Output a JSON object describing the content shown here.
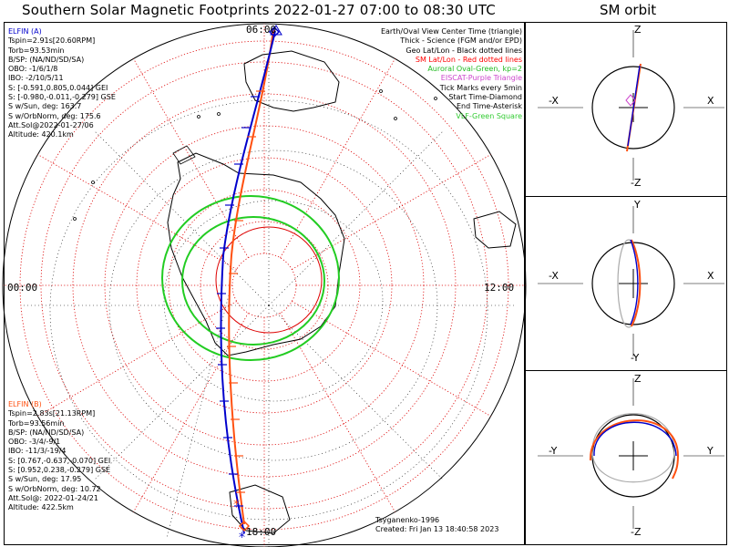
{
  "title": "Southern Solar Magnetic Footprints 2022-01-27 07:00 to 08:30 UTC",
  "sm_title": "SM orbit",
  "colors": {
    "elfin_a": "#0000cc",
    "elfin_b": "#ff5010",
    "geo_grid": "#000000",
    "sm_grid": "#dd0000",
    "oval": "#22cc22",
    "eiscat": "#cc44cc",
    "vlf": "#33cc33"
  },
  "map": {
    "label_top": "06:00",
    "label_left": "00:00",
    "label_right": "12:00",
    "label_bottom": "18:00"
  },
  "elfin_a": {
    "header": "ELFIN (A)",
    "lines": [
      "Tspin=2.91s[20.60RPM]",
      "Torb=93.53min",
      "B/SP: (NA/ND/SD/SA)",
      "OBO: -1/6/1/8",
      "IBO: -2/10/5/11",
      "S: [-0.591,0.805,0.044] GEI",
      "S: [-0.980,-0.011,-0.279] GSE",
      "S w/Sun, deg: 163.7",
      "S w/OrbNorm, deg: 175.6",
      "Att.Sol@2022-01-27/06",
      "Altitude: 420.1km"
    ]
  },
  "elfin_b": {
    "header": "ELFIN (B)",
    "lines": [
      "Tspin=2.83s[21.13RPM]",
      "Torb=93.56min",
      "B/SP: (NA/ND/SD/SA)",
      "OBO: -3/4/-9/1",
      "IBO: -11/3/-19/4",
      "S: [0.767,-0.637,-0.070] GEI",
      "S: [0.952,0.238,-0.279] GSE",
      "S w/Sun, deg: 17.95",
      "S w/OrbNorm, deg: 10.72",
      "Att.Sol@: 2022-01-24/21",
      "Altitude: 422.5km"
    ]
  },
  "legend": [
    {
      "text": "Earth/Oval View Center Time (triangle)",
      "color": "#000000"
    },
    {
      "text": "Thick - Science (FGM and/or EPD)",
      "color": "#000000"
    },
    {
      "text": "Geo Lat/Lon - Black dotted lines",
      "color": "#000000"
    },
    {
      "text": "SM Lat/Lon - Red dotted lines",
      "color": "#ff0000"
    },
    {
      "text": "Auroral Oval-Green, kp=2",
      "color": "#22bb22"
    },
    {
      "text": "EISCAT-Purple Triangle",
      "color": "#cc44cc"
    },
    {
      "text": "Tick Marks every 5min",
      "color": "#000000"
    },
    {
      "text": "Start Time-Diamond",
      "color": "#000000"
    },
    {
      "text": "End Time-Asterisk",
      "color": "#000000"
    },
    {
      "text": "VLF-Green Square",
      "color": "#33cc33"
    }
  ],
  "credit": {
    "author": "Tsyganenko-1996",
    "created": "Created: Fri Jan 13 18:40:58 2023"
  },
  "sm_panels": [
    {
      "top": "Z",
      "bottom": "-Z",
      "left": "-X",
      "right": "X"
    },
    {
      "top": "Y",
      "bottom": "-Y",
      "left": "-X",
      "right": "X"
    },
    {
      "top": "Z",
      "bottom": "-Z",
      "left": "-Y",
      "right": "Y"
    }
  ]
}
